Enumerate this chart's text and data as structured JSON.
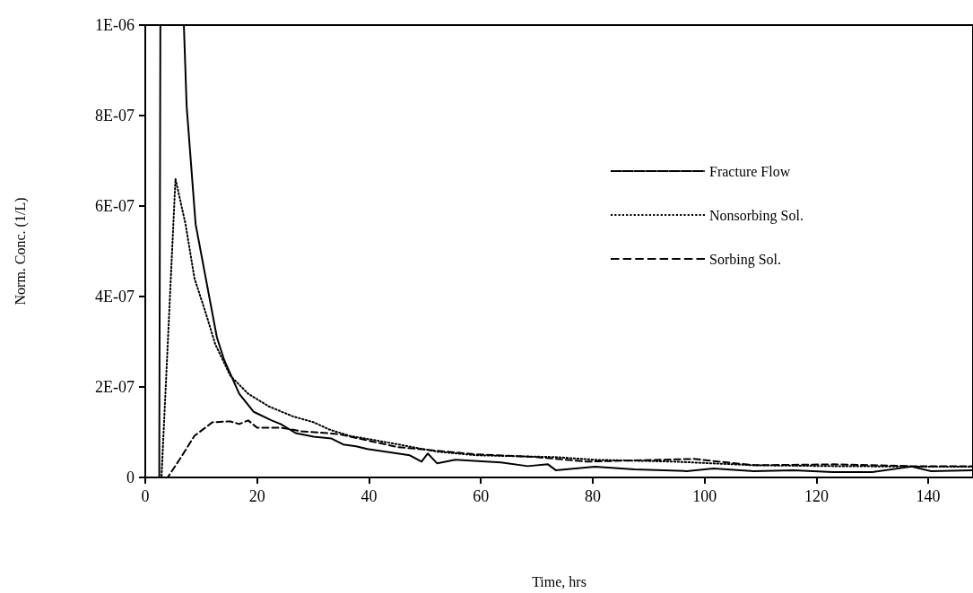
{
  "chart_data": {
    "type": "line",
    "xlabel": "Time, hrs",
    "ylabel": "Norm. Conc. (1/L)",
    "xlim": [
      0,
      148
    ],
    "xticks": [
      0,
      20,
      40,
      60,
      80,
      100,
      120,
      140
    ],
    "ylim": [
      0,
      1e-06
    ],
    "yticks": [
      {
        "value": 0,
        "label": "0"
      },
      {
        "value": 2e-07,
        "label": "2E-07"
      },
      {
        "value": 4e-07,
        "label": "4E-07"
      },
      {
        "value": 6e-07,
        "label": "6E-07"
      },
      {
        "value": 8e-07,
        "label": "8E-07"
      },
      {
        "value": 1e-06,
        "label": "1E-06"
      }
    ],
    "grid": false,
    "legend": "right",
    "marker": "none",
    "series": [
      {
        "name": "Fracture Flow",
        "color": "#000000",
        "line_style": "solid",
        "x": [
          0,
          2.5,
          2.7,
          4.8,
          6.9,
          7.4,
          9.0,
          12.8,
          14.1,
          16.8,
          19.4,
          22.6,
          24.2,
          26.9,
          30.1,
          33.3,
          35.4,
          37.7,
          39.7,
          47.3,
          49.4,
          50.5,
          52.2,
          55.4,
          63.6,
          68.4,
          72,
          73.4,
          80.4,
          87.5,
          96.8,
          101.6,
          108.8,
          115.9,
          122.9,
          130,
          137,
          140.5,
          148
        ],
        "values": [
          0,
          0,
          1e-06,
          null,
          1e-06,
          8.2e-07,
          5.6e-07,
          3.1e-07,
          2.6e-07,
          1.85e-07,
          1.45e-07,
          1.26e-07,
          1.18e-07,
          9.8e-08,
          9e-08,
          8.6e-08,
          7.3e-08,
          6.9e-08,
          6.3e-08,
          4.9e-08,
          3.5e-08,
          5.3e-08,
          3.1e-08,
          3.9e-08,
          3.3e-08,
          2.5e-08,
          2.9e-08,
          1.6e-08,
          2.4e-08,
          1.8e-08,
          1.4e-08,
          2e-08,
          1.4e-08,
          1.6e-08,
          1.2e-08,
          1.2e-08,
          2.4e-08,
          1.4e-08,
          1.6e-08
        ]
      },
      {
        "name": "Nonsorbing Sol.",
        "color": "#000000",
        "line_style": "dotted",
        "x": [
          0,
          2.9,
          5.4,
          7.2,
          8.8,
          10.9,
          12.5,
          15.2,
          18.4,
          22.1,
          26.4,
          30.1,
          32.9,
          36.5,
          40.8,
          45.2,
          52.2,
          59.3,
          73.4,
          80.4,
          94.6,
          108.8,
          122.9,
          137,
          148
        ],
        "values": [
          0,
          0,
          6.6e-07,
          5.6e-07,
          4.4e-07,
          3.6e-07,
          2.95e-07,
          2.25e-07,
          1.85e-07,
          1.57e-07,
          1.35e-07,
          1.22e-07,
          1.06e-07,
          9.2e-08,
          8.3e-08,
          7.3e-08,
          5.7e-08,
          4.9e-08,
          4.5e-08,
          3.9e-08,
          3.5e-08,
          2.7e-08,
          2.5e-08,
          2.4e-08,
          2.4e-08
        ]
      },
      {
        "name": "Sorbing Sol.",
        "color": "#000000",
        "line_style": "dashed",
        "x": [
          0,
          4,
          6.1,
          8.8,
          12,
          15.2,
          16.8,
          18.4,
          20,
          24.2,
          28,
          34.5,
          45.2,
          59.3,
          69.9,
          79,
          98,
          108.8,
          123,
          137,
          148
        ],
        "values": [
          0,
          0,
          3.9e-08,
          9.2e-08,
          1.22e-07,
          1.24e-07,
          1.18e-07,
          1.26e-07,
          1.1e-07,
          1.1e-07,
          1.02e-07,
          9.6e-08,
          6.7e-08,
          5.1e-08,
          4.5e-08,
          3.5e-08,
          4.1e-08,
          2.7e-08,
          2.9e-08,
          2.5e-08,
          2.5e-08
        ]
      }
    ]
  }
}
